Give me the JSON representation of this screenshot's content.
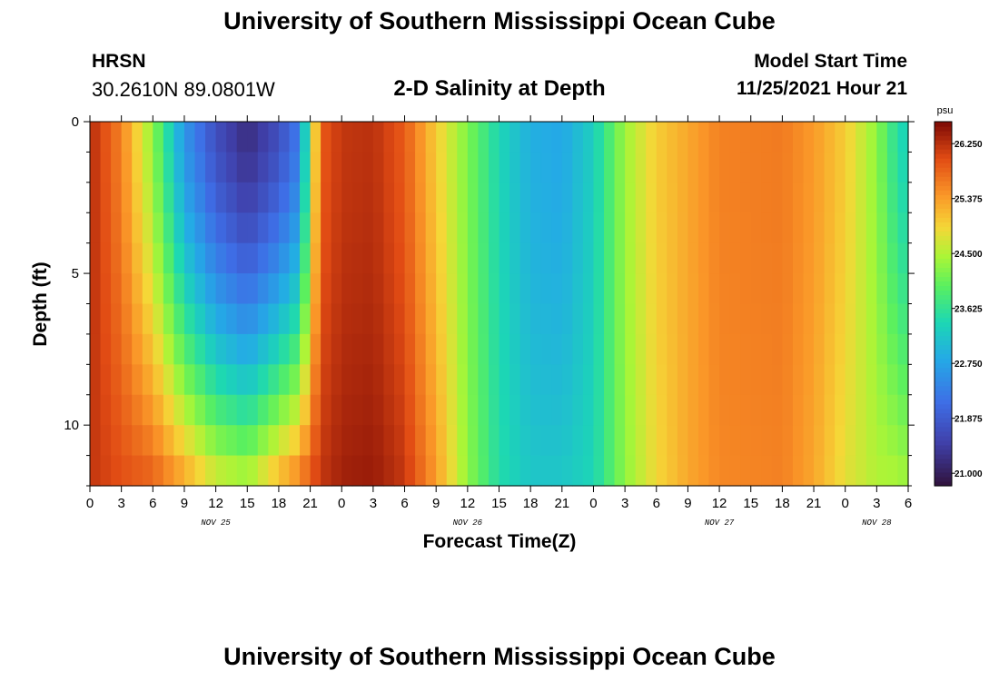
{
  "header": {
    "title": "University of Southern Mississippi Ocean Cube",
    "station": "HRSN",
    "coords": "30.2610N  89.0801W",
    "subtitle": "2-D Salinity at Depth",
    "model_start_label": "Model Start Time",
    "model_start_value": "11/25/2021 Hour 21"
  },
  "footer": {
    "title": "University of Southern Mississippi Ocean Cube"
  },
  "chart_data": {
    "type": "heatmap",
    "title": "2-D Salinity at Depth",
    "xlabel": "Forecast Time(Z)",
    "ylabel": "Depth (ft)",
    "ylim": [
      0,
      12
    ],
    "y_ticks": [
      0,
      5,
      10
    ],
    "y_tick_labels": [
      "0",
      "5",
      "10"
    ],
    "x_start_hour": 0,
    "x_end_hour": 78,
    "x_tick_step_hours": 3,
    "x_tick_labels": [
      "0",
      "3",
      "6",
      "9",
      "12",
      "15",
      "18",
      "21",
      "0",
      "3",
      "6",
      "9",
      "12",
      "15",
      "18",
      "21",
      "0",
      "3",
      "6",
      "9",
      "12",
      "15",
      "18",
      "21",
      "0",
      "3",
      "6"
    ],
    "date_labels": [
      {
        "label": "NOV 25",
        "hour": 12
      },
      {
        "label": "NOV 26",
        "hour": 36
      },
      {
        "label": "NOV 27",
        "hour": 60
      },
      {
        "label": "NOV 28",
        "hour": 75
      }
    ],
    "colorbar": {
      "unit": "psu",
      "min": 20.8,
      "max": 26.6,
      "tick_values": [
        26.25,
        25.375,
        24.5,
        23.625,
        22.75,
        21.875,
        21.0
      ],
      "tick_labels": [
        "26.250",
        "25.375",
        "24.500",
        "23.625",
        "22.750",
        "21.875",
        "21.000"
      ]
    },
    "salinity_field": {
      "description": "Salinity (psu) vs forecast hour and depth; column profiles interpolated linearly in time",
      "columns": [
        {
          "hour": 0,
          "surface": 26.3,
          "bottom": 26.2
        },
        {
          "hour": 3,
          "surface": 25.6,
          "bottom": 26.0
        },
        {
          "hour": 6,
          "surface": 24.3,
          "bottom": 25.9
        },
        {
          "hour": 9,
          "surface": 22.6,
          "bottom": 25.4
        },
        {
          "hour": 12,
          "surface": 21.7,
          "bottom": 24.8
        },
        {
          "hour": 15,
          "surface": 21.2,
          "bottom": 24.6
        },
        {
          "hour": 18,
          "surface": 21.7,
          "bottom": 25.3
        },
        {
          "hour": 20,
          "surface": 22.3,
          "bottom": 25.7
        },
        {
          "hour": 21,
          "surface": 24.2,
          "bottom": 26.0
        },
        {
          "hour": 22,
          "surface": 25.9,
          "bottom": 26.2
        },
        {
          "hour": 24,
          "surface": 26.2,
          "bottom": 26.4
        },
        {
          "hour": 27,
          "surface": 26.25,
          "bottom": 26.45
        },
        {
          "hour": 30,
          "surface": 25.9,
          "bottom": 26.2
        },
        {
          "hour": 33,
          "surface": 25.0,
          "bottom": 25.4
        },
        {
          "hour": 36,
          "surface": 24.2,
          "bottom": 24.3
        },
        {
          "hour": 39,
          "surface": 23.4,
          "bottom": 23.5
        },
        {
          "hour": 42,
          "surface": 22.9,
          "bottom": 23.2
        },
        {
          "hour": 45,
          "surface": 22.8,
          "bottom": 23.2
        },
        {
          "hour": 48,
          "surface": 23.3,
          "bottom": 23.4
        },
        {
          "hour": 51,
          "surface": 24.4,
          "bottom": 24.3
        },
        {
          "hour": 54,
          "surface": 25.0,
          "bottom": 24.9
        },
        {
          "hour": 57,
          "surface": 25.3,
          "bottom": 25.3
        },
        {
          "hour": 60,
          "surface": 25.6,
          "bottom": 25.55
        },
        {
          "hour": 66,
          "surface": 25.65,
          "bottom": 25.6
        },
        {
          "hour": 69,
          "surface": 25.4,
          "bottom": 25.3
        },
        {
          "hour": 72,
          "surface": 25.0,
          "bottom": 24.8
        },
        {
          "hour": 75,
          "surface": 24.3,
          "bottom": 24.5
        },
        {
          "hour": 77,
          "surface": 23.5,
          "bottom": 24.5
        },
        {
          "hour": 78,
          "surface": 23.3,
          "bottom": 24.4
        }
      ]
    }
  }
}
